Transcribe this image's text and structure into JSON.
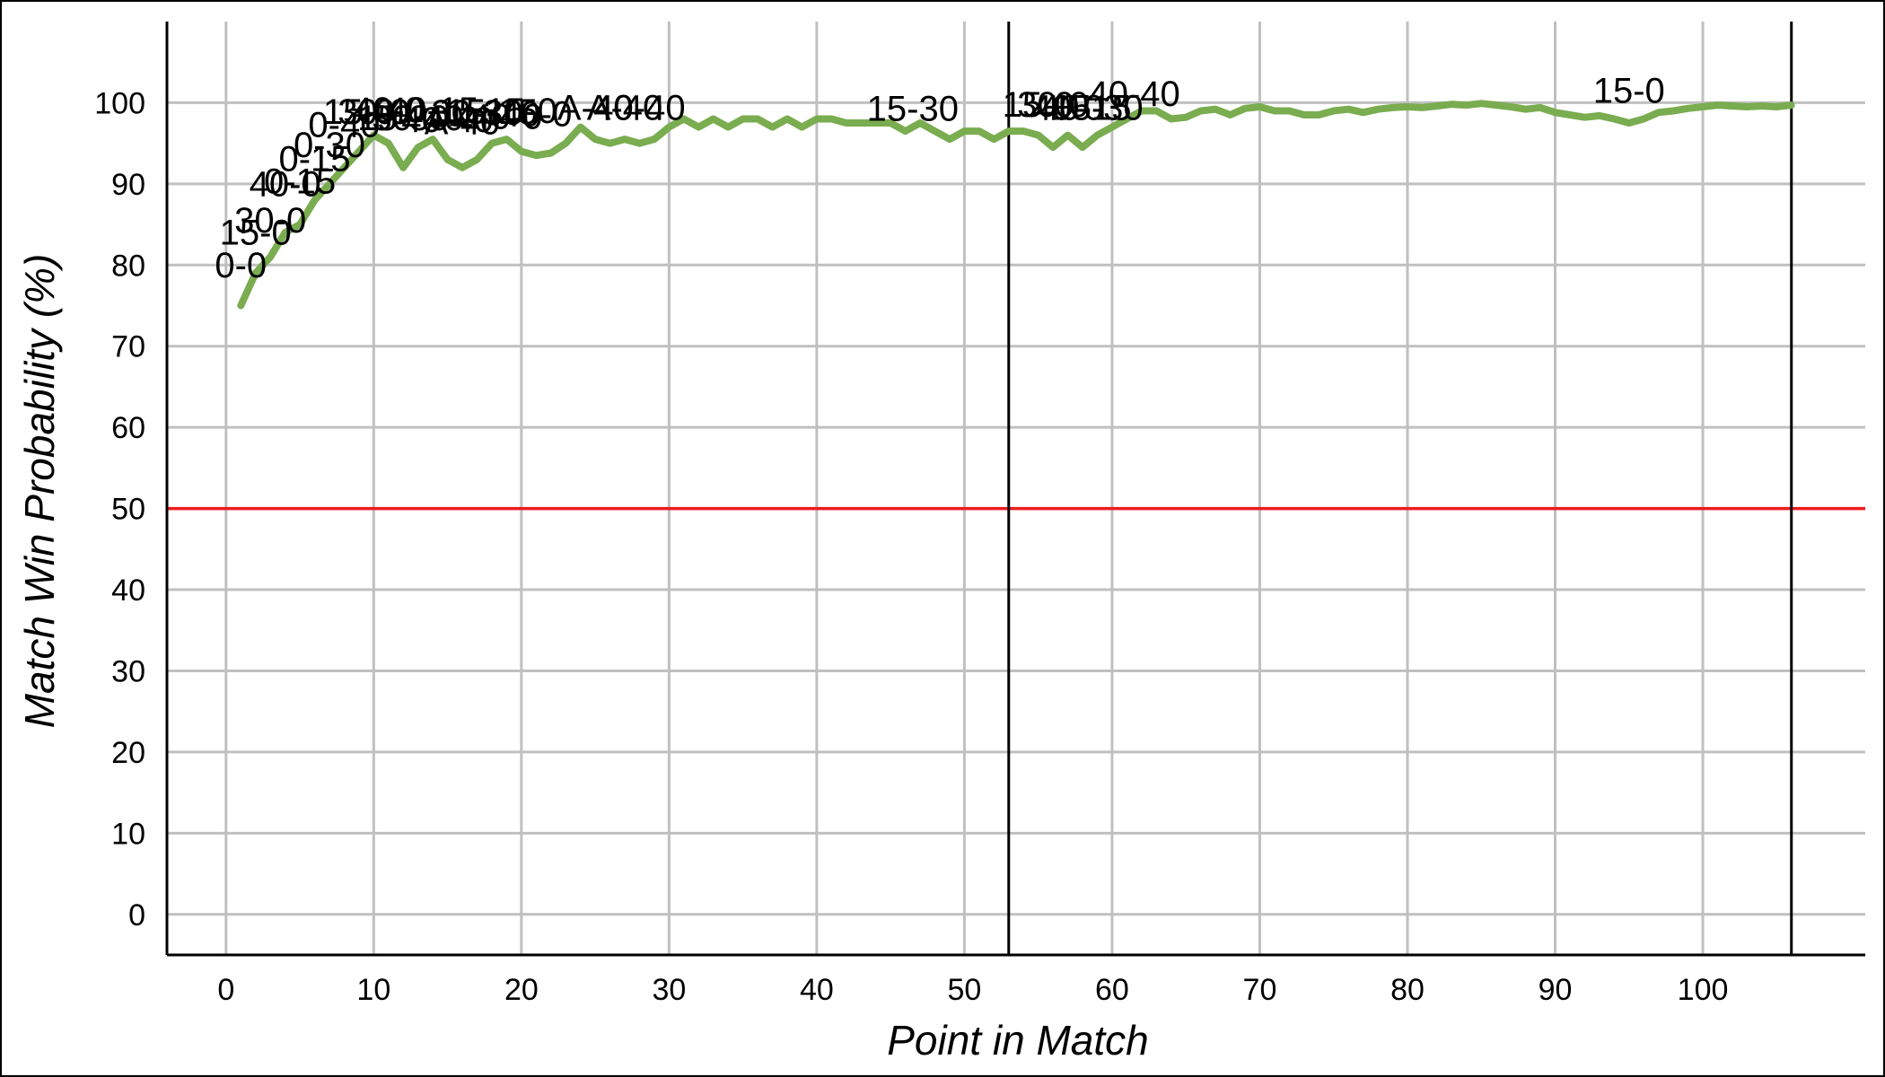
{
  "chart_data": {
    "type": "line",
    "title": "",
    "xlabel": "Point in Match",
    "ylabel": "Match Win Probability (%)",
    "xlim": [
      -4,
      111
    ],
    "ylim": [
      -5,
      110
    ],
    "xticks": [
      0,
      10,
      20,
      30,
      40,
      50,
      60,
      70,
      80,
      90,
      100
    ],
    "yticks": [
      0,
      10,
      20,
      30,
      40,
      50,
      60,
      70,
      80,
      90,
      100
    ],
    "grid": true,
    "reference_line": {
      "y": 50,
      "color": "#ee1c1c"
    },
    "vertical_markers": [
      53,
      106
    ],
    "series": [
      {
        "color": "#7aac50",
        "x": [
          1,
          2,
          3,
          4,
          5,
          6,
          7,
          8,
          9,
          10,
          11,
          12,
          13,
          14,
          15,
          16,
          17,
          18,
          19,
          20,
          21,
          22,
          23,
          24,
          25,
          26,
          27,
          28,
          29,
          30,
          31,
          32,
          33,
          34,
          35,
          36,
          37,
          38,
          39,
          40,
          41,
          42,
          43,
          44,
          45,
          46,
          47,
          48,
          49,
          50,
          51,
          52,
          53,
          54,
          55,
          56,
          57,
          58,
          59,
          60,
          61,
          62,
          63,
          64,
          65,
          66,
          67,
          68,
          69,
          70,
          71,
          72,
          73,
          74,
          75,
          76,
          77,
          78,
          79,
          80,
          81,
          82,
          83,
          84,
          85,
          86,
          87,
          88,
          89,
          90,
          91,
          92,
          93,
          94,
          95,
          96,
          97,
          98,
          99,
          100,
          101,
          102,
          103,
          104,
          105,
          106
        ],
        "y": [
          75,
          79,
          81,
          84,
          85,
          88,
          90,
          92,
          94,
          96,
          95,
          92,
          94.5,
          95.5,
          93,
          92,
          93,
          95,
          95.5,
          94,
          93.5,
          93.8,
          95,
          97,
          95.5,
          95,
          95.5,
          95,
          95.5,
          97,
          98,
          97,
          98,
          97,
          98,
          98,
          97,
          98,
          97,
          98,
          98,
          97.5,
          97.5,
          97.5,
          97.5,
          96.5,
          97.5,
          96.5,
          95.5,
          96.5,
          96.5,
          95.5,
          96.5,
          96.5,
          96,
          94.5,
          96,
          94.5,
          96,
          97,
          98,
          99,
          99,
          98,
          98.2,
          99,
          99.2,
          98.5,
          99.3,
          99.5,
          99,
          99,
          98.5,
          98.5,
          99,
          99.2,
          98.8,
          99.2,
          99.4,
          99.5,
          99.4,
          99.6,
          99.8,
          99.7,
          99.9,
          99.7,
          99.5,
          99.2,
          99.4,
          98.8,
          98.5,
          98.2,
          98.4,
          98,
          97.5,
          98,
          98.8,
          99,
          99.3,
          99.5,
          99.7,
          99.6,
          99.5,
          99.6,
          99.5,
          99.7
        ]
      }
    ],
    "annotations": [
      {
        "text": "0-0",
        "x": 1,
        "y": 78.5
      },
      {
        "text": "15-0",
        "x": 2,
        "y": 82.5
      },
      {
        "text": "30-0",
        "x": 3,
        "y": 84
      },
      {
        "text": "40-0",
        "x": 4,
        "y": 88.5
      },
      {
        "text": "0-15",
        "x": 5,
        "y": 88.8
      },
      {
        "text": "0-15",
        "x": 6,
        "y": 91.6
      },
      {
        "text": "0-30",
        "x": 7,
        "y": 93.3
      },
      {
        "text": "0-40",
        "x": 8,
        "y": 95.8
      },
      {
        "text": "15-0",
        "x": 9,
        "y": 97.4
      },
      {
        "text": "30-0",
        "x": 10,
        "y": 97.4
      },
      {
        "text": "40-0",
        "x": 11,
        "y": 97.6
      },
      {
        "text": "15-30",
        "x": 12,
        "y": 96.6
      },
      {
        "text": "30-40",
        "x": 13,
        "y": 96.6
      },
      {
        "text": "40-15",
        "x": 14,
        "y": 97.6
      },
      {
        "text": "40-40",
        "x": 15,
        "y": 96.4
      },
      {
        "text": "A-40",
        "x": 16,
        "y": 96.1
      },
      {
        "text": "30-30",
        "x": 17,
        "y": 97.3
      },
      {
        "text": "15-15",
        "x": 18,
        "y": 97.4
      },
      {
        "text": "40-0",
        "x": 19,
        "y": 96.8
      },
      {
        "text": "15-0",
        "x": 20,
        "y": 97.5
      },
      {
        "text": "40-0",
        "x": 21,
        "y": 97.1
      },
      {
        "text": "A-40",
        "x": 25,
        "y": 97.9
      },
      {
        "text": "A-40",
        "x": 27,
        "y": 97.9
      },
      {
        "text": "40-40",
        "x": 28,
        "y": 97.9
      },
      {
        "text": "15-30",
        "x": 46.5,
        "y": 97.8
      },
      {
        "text": "15-0",
        "x": 55,
        "y": 98.3
      },
      {
        "text": "30-0",
        "x": 56,
        "y": 98.3
      },
      {
        "text": "40-0",
        "x": 57,
        "y": 97.9
      },
      {
        "text": "40-15",
        "x": 58.2,
        "y": 97.9
      },
      {
        "text": "15-30",
        "x": 59,
        "y": 97.9
      },
      {
        "text": "40-40",
        "x": 61.5,
        "y": 99.6
      },
      {
        "text": "15-0",
        "x": 95,
        "y": 100
      }
    ]
  }
}
